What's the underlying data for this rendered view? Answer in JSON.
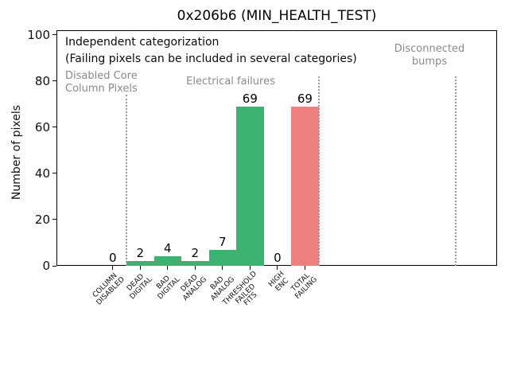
{
  "figure": {
    "title": "0x206b6 (MIN_HEALTH_TEST)"
  },
  "annotations": {
    "independent": "Independent categorization",
    "failing_note": "(Failing pixels can be included in several categories)",
    "group_disabled": "Disabled Core\nColumn Pixels",
    "group_electrical": "Electrical failures",
    "group_bumps": "Disconnected\nbumps"
  },
  "chart_data": {
    "type": "bar",
    "title": "0x206b6 (MIN_HEALTH_TEST)",
    "xlabel": "",
    "ylabel": "Number of pixels",
    "categories": [
      "COLUMN\nDISABLED",
      "DEAD\nDIGITAL",
      "BAD\nDIGITAL",
      "DEAD\nANALOG",
      "BAD\nANALOG",
      "THRESHOLD\nFAILED\nFITS",
      "HIGH\nENC",
      "TOTAL\nFAILING"
    ],
    "values": [
      0,
      2,
      4,
      2,
      7,
      69,
      0,
      69
    ],
    "bar_colors": [
      "#3cb371",
      "#3cb371",
      "#3cb371",
      "#3cb371",
      "#3cb371",
      "#3cb371",
      "#3cb371",
      "#f08080"
    ],
    "value_labels": [
      0,
      2,
      4,
      2,
      7,
      69,
      0,
      69
    ],
    "yticks": [
      0,
      20,
      40,
      60,
      80,
      100
    ],
    "ylim": [
      0,
      102
    ],
    "xlim": [
      -2.05,
      14.0
    ],
    "grid": false,
    "legend": null,
    "separators": [
      {
        "x": 0.5,
        "y_top": 74
      },
      {
        "x": 7.5,
        "y_top": 82
      },
      {
        "x": 12.5,
        "y_top": 82
      }
    ],
    "colors": {
      "bar_green": "#3cb371",
      "bar_red": "#f08080",
      "gray_text": "#8a8a8a",
      "separator_gray": "#9a9a9a"
    }
  }
}
